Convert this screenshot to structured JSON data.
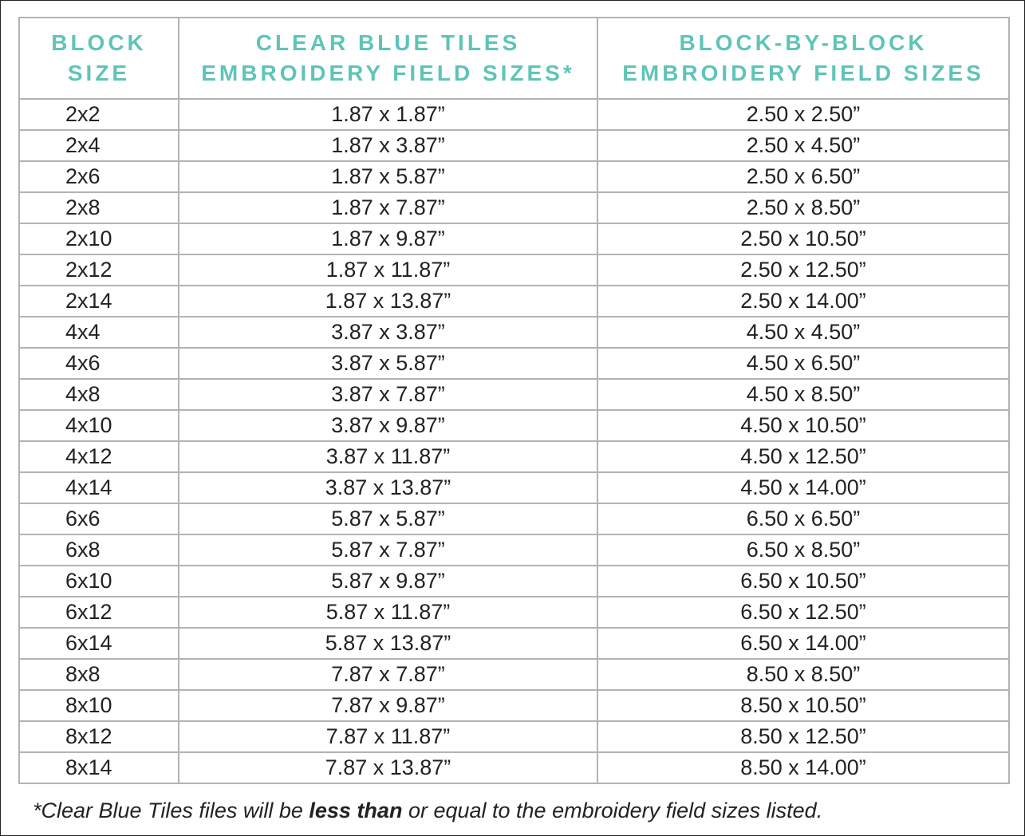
{
  "headers": {
    "block_size": [
      "BLOCK",
      "SIZE"
    ],
    "clear_blue": [
      "CLEAR BLUE TILES",
      "EMBROIDERY FIELD SIZES*"
    ],
    "block_by_block": [
      "BLOCK-BY-BLOCK",
      "EMBROIDERY FIELD SIZES"
    ]
  },
  "rows": [
    [
      "2x2",
      "1.87 x 1.87”",
      "2.50 x 2.50”"
    ],
    [
      "2x4",
      "1.87 x 3.87”",
      "2.50 x 4.50”"
    ],
    [
      "2x6",
      "1.87 x 5.87”",
      "2.50 x 6.50”"
    ],
    [
      "2x8",
      "1.87 x 7.87”",
      "2.50 x 8.50”"
    ],
    [
      "2x10",
      "1.87 x 9.87”",
      "2.50 x 10.50”"
    ],
    [
      "2x12",
      "1.87 x 11.87”",
      "2.50 x 12.50”"
    ],
    [
      "2x14",
      "1.87 x 13.87”",
      "2.50 x 14.00”"
    ],
    [
      "4x4",
      "3.87 x 3.87”",
      "4.50 x 4.50”"
    ],
    [
      "4x6",
      "3.87 x 5.87”",
      "4.50 x 6.50”"
    ],
    [
      "4x8",
      "3.87 x 7.87”",
      "4.50 x 8.50”"
    ],
    [
      "4x10",
      "3.87 x 9.87”",
      "4.50 x 10.50”"
    ],
    [
      "4x12",
      "3.87 x 11.87”",
      "4.50 x 12.50”"
    ],
    [
      "4x14",
      "3.87 x 13.87”",
      "4.50 x 14.00”"
    ],
    [
      "6x6",
      "5.87 x 5.87”",
      "6.50 x 6.50”"
    ],
    [
      "6x8",
      "5.87 x 7.87”",
      "6.50 x 8.50”"
    ],
    [
      "6x10",
      "5.87 x 9.87”",
      "6.50 x 10.50”"
    ],
    [
      "6x12",
      "5.87 x 11.87”",
      "6.50 x 12.50”"
    ],
    [
      "6x14",
      "5.87 x 13.87”",
      "6.50 x 14.00”"
    ],
    [
      "8x8",
      "7.87 x 7.87”",
      "8.50 x 8.50”"
    ],
    [
      "8x10",
      "7.87 x 9.87”",
      "8.50 x 10.50”"
    ],
    [
      "8x12",
      "7.87 x 11.87”",
      "8.50 x 12.50”"
    ],
    [
      "8x14",
      "7.87 x 13.87”",
      "8.50 x 14.00”"
    ]
  ],
  "footnote": {
    "before": "*Clear Blue Tiles files will be ",
    "bold": "less than",
    "after": " or equal to the embroidery field sizes listed."
  },
  "colors": {
    "header_text": "#5fc4b8",
    "border": "#b3b3b3"
  }
}
